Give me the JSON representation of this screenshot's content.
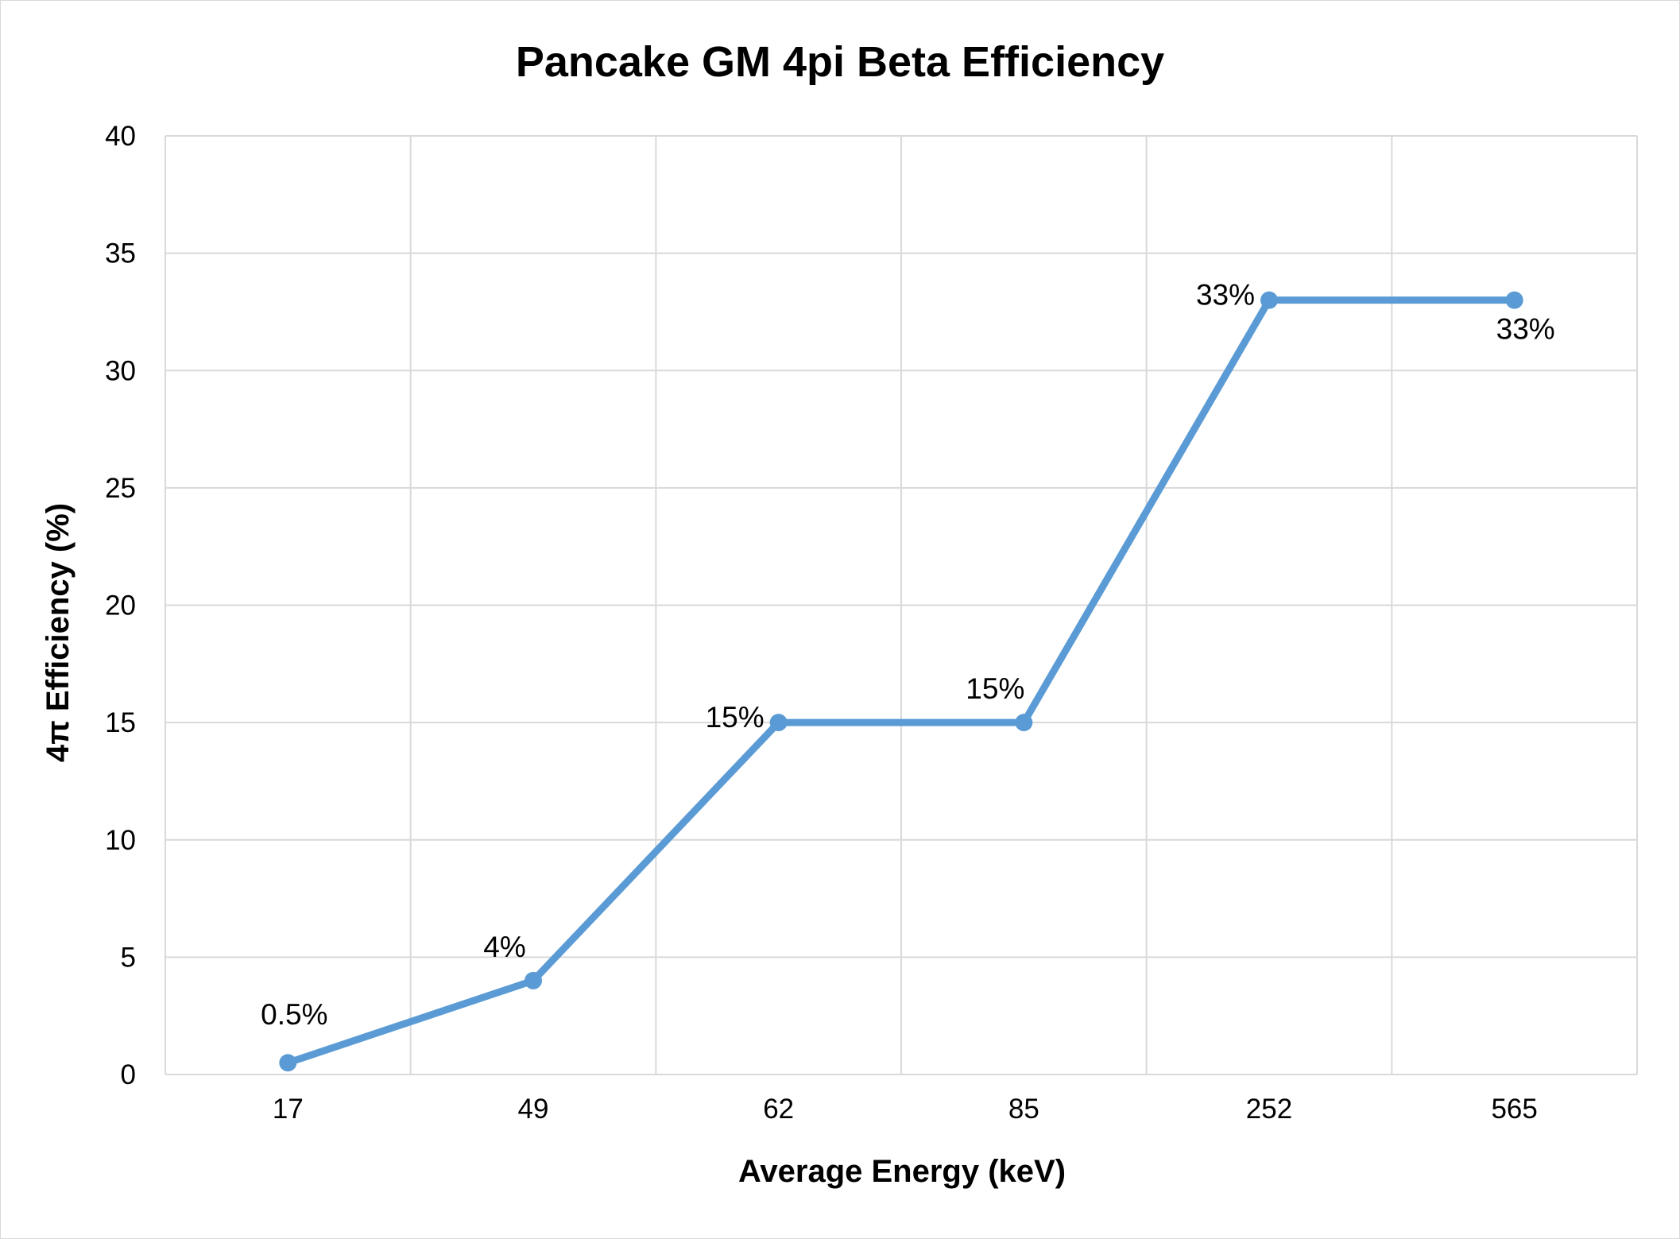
{
  "chart_data": {
    "type": "line",
    "title": "Pancake GM 4pi Beta Efficiency",
    "xlabel": "Average Energy (keV)",
    "ylabel": "4π Efficiency (%)",
    "categories": [
      "17",
      "49",
      "62",
      "85",
      "252",
      "565"
    ],
    "series": [
      {
        "values": [
          0.5,
          4,
          15,
          15,
          33,
          33
        ],
        "data_labels": [
          "0.5%",
          "4%",
          "15%",
          "15%",
          "33%",
          "33%"
        ],
        "label_positions": [
          "above",
          "above-left",
          "left",
          "above-left",
          "left",
          "below"
        ]
      }
    ],
    "ylim": [
      0,
      40
    ],
    "yticks": [
      0,
      5,
      10,
      15,
      20,
      25,
      30,
      35,
      40
    ],
    "grid": true,
    "legend": "none",
    "colors": {
      "series": "#5b9bd5",
      "grid": "#d9d9d9"
    }
  }
}
